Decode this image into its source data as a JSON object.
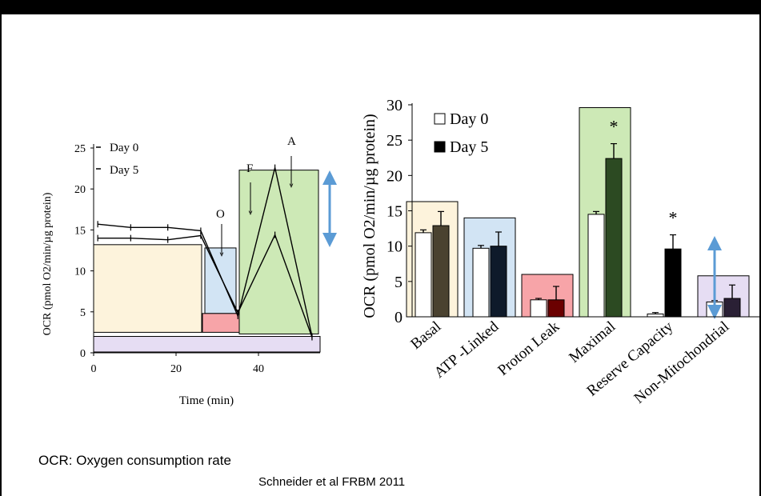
{
  "footnote": "OCR: Oxygen consumption rate",
  "citation": "Schneider et al FRBM 2011",
  "colors": {
    "basal": "#fdf3dc",
    "atp": "#d2e4f4",
    "leak": "#f7a4a8",
    "maximal": "#cde9b6",
    "nonmito": "#e6ddf3",
    "arrow": "#5b9bd5"
  },
  "chart_data": [
    {
      "type": "line",
      "xlabel": "Time (min)",
      "ylabel": "OCR (pmol O2/min/µg protein)",
      "xlim": [
        0,
        55
      ],
      "ylim": [
        0,
        25
      ],
      "xticks": [
        0,
        20,
        40
      ],
      "yticks": [
        0,
        5,
        10,
        15,
        20,
        25
      ],
      "legend": [
        "Day 0",
        "Day 5"
      ],
      "annotations": [
        "O",
        "F",
        "A"
      ],
      "series": [
        {
          "name": "Day 0",
          "x": [
            1,
            9,
            18,
            26,
            35,
            44,
            53
          ],
          "y": [
            14.0,
            14.0,
            13.8,
            14.3,
            4.9,
            14.4,
            1.9
          ]
        },
        {
          "name": "Day 5",
          "x": [
            1,
            9,
            18,
            26,
            35,
            44,
            53
          ],
          "y": [
            15.7,
            15.3,
            15.3,
            14.9,
            4.5,
            22.6,
            2.0
          ]
        }
      ]
    },
    {
      "type": "bar",
      "ylabel": "OCR (pmol O2/min/µg protein)",
      "ylim": [
        0,
        30
      ],
      "yticks": [
        0,
        5,
        10,
        15,
        20,
        25,
        30
      ],
      "legend": [
        "Day 0",
        "Day 5"
      ],
      "categories": [
        "Basal",
        "ATP -Linked",
        "Proton Leak",
        "Maximal",
        "Reserve Capacity",
        "Non-Mitochondrial"
      ],
      "significance": [
        "",
        "",
        "",
        "*",
        "*",
        ""
      ],
      "series": [
        {
          "name": "Day 0",
          "values": [
            11.9,
            9.7,
            2.4,
            14.5,
            0.4,
            2.1
          ],
          "errors": [
            0.4,
            0.4,
            0.2,
            0.4,
            0.2,
            0.2
          ]
        },
        {
          "name": "Day 5",
          "values": [
            12.9,
            10.0,
            2.4,
            22.4,
            9.6,
            2.6
          ],
          "errors": [
            2.0,
            2.0,
            1.9,
            2.1,
            2.0,
            1.9
          ]
        }
      ]
    }
  ]
}
